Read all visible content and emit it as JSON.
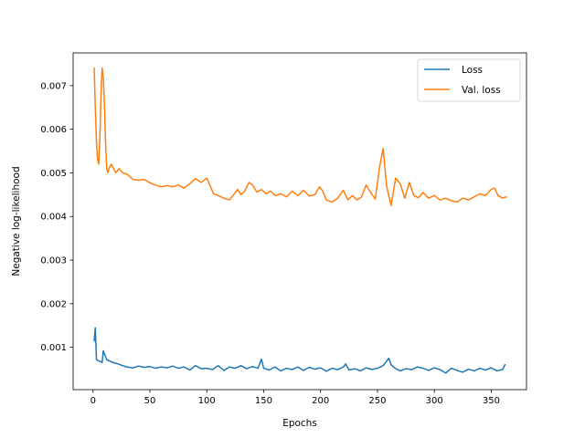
{
  "chart_data": {
    "type": "line",
    "title": "",
    "xlabel": "Epochs",
    "ylabel": "Negative log-likelihood",
    "xlim": [
      -17.5,
      381
    ],
    "ylim": [
      3e-05,
      0.00775
    ],
    "xticks": [
      0,
      50,
      100,
      150,
      200,
      250,
      300,
      350
    ],
    "xtick_labels": [
      "0",
      "50",
      "100",
      "150",
      "200",
      "250",
      "300",
      "350"
    ],
    "yticks": [
      0.001,
      0.002,
      0.003,
      0.004,
      0.005,
      0.006,
      0.007
    ],
    "ytick_labels": [
      "0.001",
      "0.002",
      "0.003",
      "0.004",
      "0.005",
      "0.006",
      "0.007"
    ],
    "grid": false,
    "legend_position": "top-right",
    "series": [
      {
        "name": "Loss",
        "color": "#1f77b4",
        "x": [
          1,
          2,
          3,
          4,
          6,
          8,
          9,
          10,
          12,
          15,
          18,
          22,
          26,
          30,
          35,
          40,
          45,
          50,
          55,
          60,
          65,
          70,
          75,
          80,
          85,
          90,
          95,
          100,
          105,
          110,
          115,
          120,
          125,
          130,
          135,
          140,
          145,
          148,
          150,
          155,
          160,
          165,
          170,
          175,
          180,
          185,
          190,
          195,
          200,
          205,
          210,
          215,
          220,
          222,
          225,
          230,
          235,
          240,
          245,
          250,
          255,
          260,
          262,
          265,
          270,
          275,
          280,
          285,
          290,
          295,
          300,
          305,
          310,
          315,
          320,
          325,
          330,
          335,
          340,
          345,
          350,
          355,
          360,
          362
        ],
        "y": [
          0.00115,
          0.00145,
          0.00072,
          0.0007,
          0.00068,
          0.00065,
          0.00092,
          0.00085,
          0.00072,
          0.00068,
          0.00065,
          0.00062,
          0.00058,
          0.00055,
          0.00053,
          0.00057,
          0.00054,
          0.00056,
          0.00052,
          0.00055,
          0.00053,
          0.00057,
          0.00052,
          0.00055,
          0.00048,
          0.00058,
          0.00051,
          0.00052,
          0.00049,
          0.00058,
          0.00047,
          0.00055,
          0.00052,
          0.00058,
          0.00051,
          0.00056,
          0.00052,
          0.00073,
          0.00052,
          0.00048,
          0.00055,
          0.00046,
          0.00052,
          0.00049,
          0.00055,
          0.00047,
          0.00054,
          0.0005,
          0.00053,
          0.00045,
          0.00052,
          0.00049,
          0.00055,
          0.00062,
          0.00048,
          0.00051,
          0.00046,
          0.00053,
          0.00049,
          0.00052,
          0.00058,
          0.00075,
          0.0006,
          0.00053,
          0.00046,
          0.00051,
          0.00049,
          0.00055,
          0.00052,
          0.00047,
          0.00053,
          0.00049,
          0.00041,
          0.00052,
          0.00047,
          0.00043,
          0.0005,
          0.00046,
          0.00052,
          0.00048,
          0.00053,
          0.00046,
          0.00049,
          0.0006
        ]
      },
      {
        "name": "Val. loss",
        "color": "#ff7f0e",
        "x": [
          1,
          2,
          3,
          4,
          5,
          6,
          7,
          8,
          9,
          10,
          11,
          12,
          13,
          14,
          16,
          18,
          20,
          23,
          26,
          30,
          35,
          40,
          45,
          50,
          55,
          60,
          65,
          70,
          75,
          80,
          85,
          90,
          95,
          100,
          103,
          106,
          110,
          115,
          120,
          123,
          127,
          130,
          133,
          137,
          140,
          144,
          148,
          152,
          156,
          160,
          165,
          170,
          175,
          180,
          185,
          190,
          195,
          199,
          202,
          205,
          210,
          215,
          220,
          224,
          228,
          232,
          236,
          240,
          244,
          248,
          252,
          255,
          258,
          262,
          266,
          270,
          274,
          278,
          282,
          286,
          290,
          295,
          300,
          305,
          310,
          315,
          320,
          325,
          330,
          335,
          340,
          345,
          350,
          353,
          356,
          360,
          363
        ],
        "y": [
          0.0074,
          0.0065,
          0.0057,
          0.0053,
          0.0052,
          0.0058,
          0.0068,
          0.0074,
          0.0072,
          0.0066,
          0.0057,
          0.0051,
          0.005,
          0.0051,
          0.0052,
          0.0051,
          0.005,
          0.0051,
          0.005,
          0.00497,
          0.00485,
          0.00483,
          0.00485,
          0.00477,
          0.00472,
          0.00468,
          0.00471,
          0.00468,
          0.00472,
          0.00465,
          0.00475,
          0.00487,
          0.00478,
          0.00488,
          0.0047,
          0.00452,
          0.00448,
          0.00442,
          0.00438,
          0.00448,
          0.00462,
          0.0045,
          0.00457,
          0.00478,
          0.00473,
          0.00456,
          0.00462,
          0.00452,
          0.00458,
          0.00448,
          0.00452,
          0.00445,
          0.00458,
          0.00448,
          0.0046,
          0.00447,
          0.0045,
          0.00468,
          0.00458,
          0.00438,
          0.00433,
          0.00442,
          0.0046,
          0.00438,
          0.00448,
          0.00438,
          0.00445,
          0.00472,
          0.00455,
          0.0044,
          0.00515,
          0.00556,
          0.0047,
          0.00425,
          0.00488,
          0.00475,
          0.00442,
          0.00478,
          0.00448,
          0.00443,
          0.00455,
          0.00442,
          0.00448,
          0.00438,
          0.00442,
          0.00436,
          0.00433,
          0.00442,
          0.00438,
          0.00445,
          0.00452,
          0.00448,
          0.00462,
          0.00465,
          0.00448,
          0.00442,
          0.00445
        ]
      }
    ]
  }
}
